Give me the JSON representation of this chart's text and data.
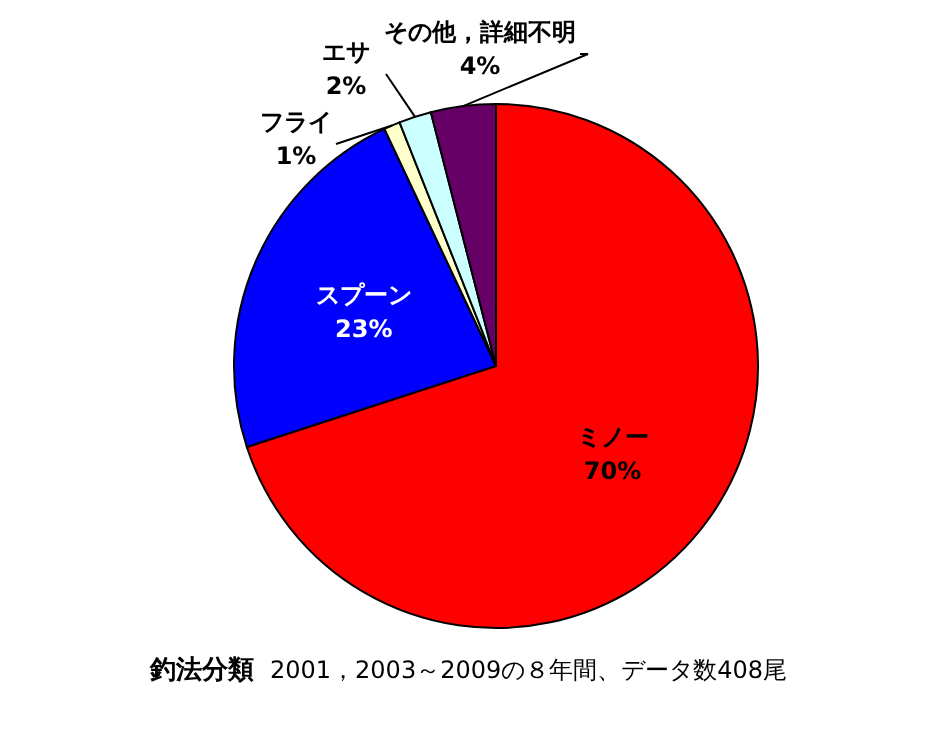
{
  "chart_data": {
    "type": "pie",
    "title": "釣法分類",
    "subtitle": "2001，2003～2009の８年間、データ数408尾",
    "categories": [
      "ミノー",
      "スプーン",
      "フライ",
      "エサ",
      "その他，詳細不明"
    ],
    "values": [
      70,
      23,
      1,
      2,
      4
    ],
    "value_labels": [
      "70%",
      "23%",
      "1%",
      "2%",
      "4%"
    ],
    "colors": [
      "#ff0000",
      "#0000ff",
      "#ffffcc",
      "#ccffff",
      "#660066"
    ],
    "legend": false
  }
}
